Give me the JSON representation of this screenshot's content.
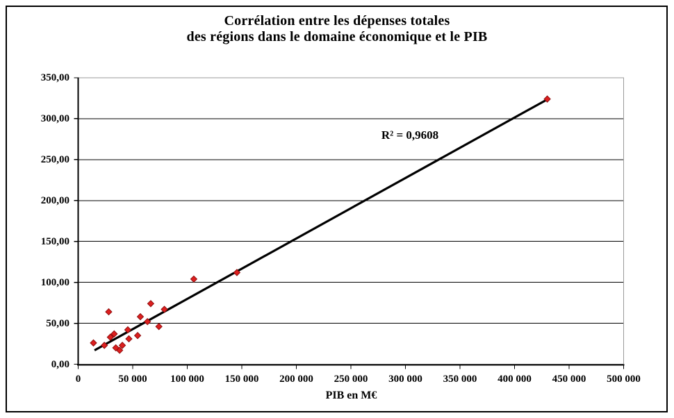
{
  "title": {
    "line1": "Corrélation entre les dépenses totales",
    "line2": "des régions dans le domaine économique et le PIB"
  },
  "chart_data": {
    "type": "scatter",
    "title": "Corrélation entre les dépenses totales des régions dans le domaine économique et le PIB",
    "xlabel": "PIB en M€",
    "ylabel": "",
    "xlim": [
      0,
      500000
    ],
    "ylim": [
      0,
      350
    ],
    "grid": "horizontal-black-gridlines",
    "legend": "none",
    "x_ticks": [
      0,
      50000,
      100000,
      150000,
      200000,
      250000,
      300000,
      350000,
      400000,
      450000,
      500000
    ],
    "x_tick_labels": [
      "0",
      "50 000",
      "100 000",
      "150 000",
      "200 000",
      "250 000",
      "300 000",
      "350 000",
      "400 000",
      "450 000",
      "500 000"
    ],
    "y_ticks": [
      0,
      50,
      100,
      150,
      200,
      250,
      300,
      350
    ],
    "y_tick_labels": [
      "0,00",
      "50,00",
      "100,00",
      "150,00",
      "200,00",
      "250,00",
      "300,00",
      "350,00"
    ],
    "points": [
      [
        14000,
        26
      ],
      [
        24000,
        23
      ],
      [
        28000,
        64
      ],
      [
        29500,
        33
      ],
      [
        33000,
        37
      ],
      [
        34500,
        20
      ],
      [
        38000,
        17
      ],
      [
        40500,
        23
      ],
      [
        45500,
        42
      ],
      [
        46500,
        31
      ],
      [
        54500,
        35
      ],
      [
        57000,
        58
      ],
      [
        63500,
        52
      ],
      [
        66500,
        74
      ],
      [
        74000,
        46
      ],
      [
        79000,
        67
      ],
      [
        106000,
        104
      ],
      [
        145500,
        112
      ],
      [
        430000,
        324
      ]
    ],
    "trendline": {
      "x1": 15000,
      "y1": 17,
      "x2": 432000,
      "y2": 325,
      "r2_label": "R² = 0,9608"
    },
    "marker": {
      "shape": "diamond",
      "size": 9,
      "color": "#dd1f1f",
      "edge": "#8e0e0e"
    },
    "colors": {
      "gridline": "#000000",
      "axis": "#000000",
      "plot_border": "#9a9a9a",
      "trendline": "#000000",
      "background": "#ffffff",
      "frame_border": "#000000"
    }
  }
}
